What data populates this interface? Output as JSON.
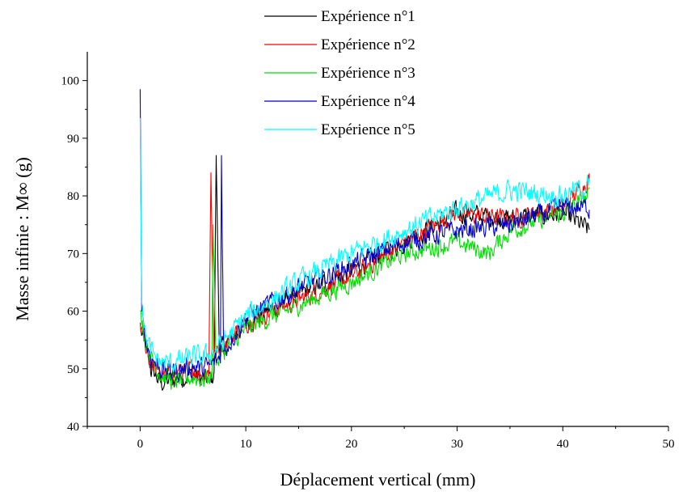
{
  "chart_data": {
    "type": "line",
    "xlabel": "Déplacement vertical (mm)",
    "ylabel": "Masse infinie :   M∞ (g)",
    "xlim": [
      -5,
      50
    ],
    "ylim": [
      40,
      105
    ],
    "xticks": [
      0,
      10,
      20,
      30,
      40,
      50
    ],
    "yticks": [
      40,
      50,
      60,
      70,
      80,
      90,
      100
    ],
    "grid": false,
    "legend_position": "top-center",
    "series": [
      {
        "name": "Expérience n°1",
        "color": "#000000",
        "noise": 1.5,
        "points": [
          [
            0,
            57
          ],
          [
            0.5,
            54
          ],
          [
            1,
            50
          ],
          [
            2,
            47.5
          ],
          [
            3,
            48
          ],
          [
            4,
            48.5
          ],
          [
            5,
            49
          ],
          [
            6,
            48
          ],
          [
            6.8,
            48.5
          ],
          [
            7,
            49
          ],
          [
            7.2,
            87
          ],
          [
            7.5,
            53
          ],
          [
            8,
            54
          ],
          [
            10,
            58
          ],
          [
            15,
            63
          ],
          [
            20,
            67
          ],
          [
            25,
            72
          ],
          [
            30,
            77
          ],
          [
            35,
            76
          ],
          [
            40,
            77
          ],
          [
            42.5,
            74
          ]
        ]
      },
      {
        "name": "Expérience n°2",
        "color": "#ff0000",
        "noise": 1.4,
        "points": [
          [
            0,
            58
          ],
          [
            0.5,
            54
          ],
          [
            1,
            51
          ],
          [
            2,
            49
          ],
          [
            3,
            49
          ],
          [
            4,
            49.5
          ],
          [
            5,
            50
          ],
          [
            6,
            49
          ],
          [
            6.5,
            49.5
          ],
          [
            6.7,
            84
          ],
          [
            7,
            52
          ],
          [
            8,
            54.5
          ],
          [
            10,
            58
          ],
          [
            15,
            62
          ],
          [
            20,
            66
          ],
          [
            25,
            72
          ],
          [
            30,
            77
          ],
          [
            35,
            76
          ],
          [
            40,
            78
          ],
          [
            42.5,
            83
          ]
        ]
      },
      {
        "name": "Expérience n°3",
        "color": "#00dd00",
        "noise": 1.4,
        "points": [
          [
            0,
            60
          ],
          [
            0.5,
            55
          ],
          [
            1,
            52
          ],
          [
            2,
            49
          ],
          [
            3,
            48
          ],
          [
            4,
            48
          ],
          [
            5,
            48.5
          ],
          [
            6,
            48
          ],
          [
            6.8,
            49
          ],
          [
            6.9,
            75
          ],
          [
            7.2,
            51
          ],
          [
            8,
            53
          ],
          [
            10,
            57
          ],
          [
            15,
            61
          ],
          [
            20,
            65
          ],
          [
            25,
            70
          ],
          [
            30,
            72
          ],
          [
            33,
            70
          ],
          [
            35,
            74
          ],
          [
            40,
            77
          ],
          [
            42.5,
            80
          ]
        ]
      },
      {
        "name": "Expérience n°4",
        "color": "#0000cc",
        "noise": 1.5,
        "points": [
          [
            0,
            98.5
          ],
          [
            0.15,
            62
          ],
          [
            0.5,
            55
          ],
          [
            1,
            52
          ],
          [
            2,
            50
          ],
          [
            3,
            49.5
          ],
          [
            4,
            50
          ],
          [
            5,
            50.5
          ],
          [
            6,
            50
          ],
          [
            7,
            51
          ],
          [
            7.6,
            52
          ],
          [
            7.7,
            87
          ],
          [
            7.9,
            53
          ],
          [
            10,
            59
          ],
          [
            15,
            64
          ],
          [
            20,
            68
          ],
          [
            25,
            72
          ],
          [
            30,
            74
          ],
          [
            35,
            75
          ],
          [
            40,
            78
          ],
          [
            42.5,
            78
          ]
        ]
      },
      {
        "name": "Expérience n°5",
        "color": "#00ffff",
        "noise": 1.6,
        "points": [
          [
            0,
            93.5
          ],
          [
            0.15,
            63
          ],
          [
            0.5,
            56
          ],
          [
            1,
            53
          ],
          [
            2,
            51
          ],
          [
            3,
            51
          ],
          [
            4,
            51.5
          ],
          [
            5,
            52
          ],
          [
            6,
            52
          ],
          [
            7,
            53
          ],
          [
            8,
            55
          ],
          [
            10,
            59
          ],
          [
            15,
            65
          ],
          [
            20,
            70
          ],
          [
            25,
            74
          ],
          [
            30,
            78
          ],
          [
            35,
            81
          ],
          [
            40,
            80
          ],
          [
            42.5,
            82
          ]
        ]
      }
    ]
  }
}
